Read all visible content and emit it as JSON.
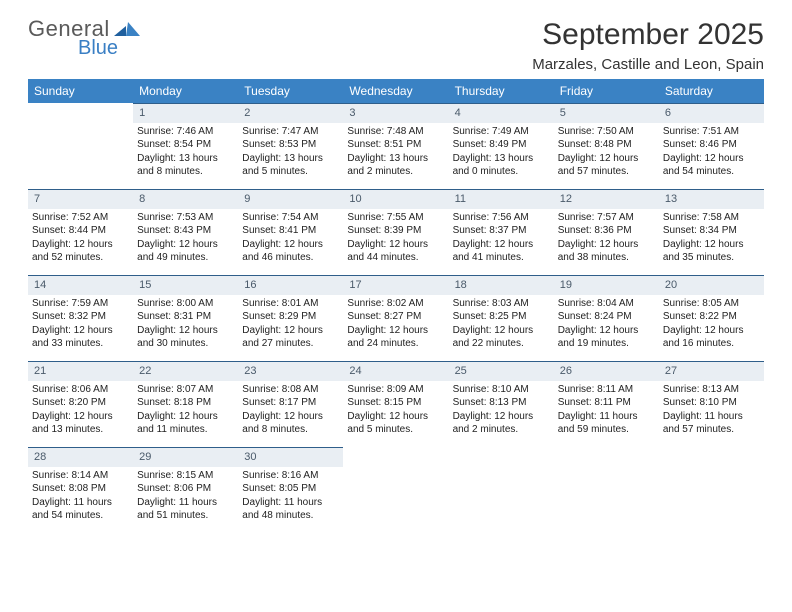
{
  "logo": {
    "line1": "General",
    "line2": "Blue"
  },
  "title": "September 2025",
  "location": "Marzales, Castille and Leon, Spain",
  "colors": {
    "header_bg": "#3a82c4",
    "header_text": "#ffffff",
    "daynum_bg": "#e9eef3",
    "daynum_border": "#2f5e8a",
    "logo_gray": "#5a5a5a",
    "logo_blue": "#3a7fc4",
    "text": "#333333"
  },
  "weekdays": [
    "Sunday",
    "Monday",
    "Tuesday",
    "Wednesday",
    "Thursday",
    "Friday",
    "Saturday"
  ],
  "weeks": [
    [
      {
        "empty": true
      },
      {
        "n": "1",
        "sr": "Sunrise: 7:46 AM",
        "ss": "Sunset: 8:54 PM",
        "d1": "Daylight: 13 hours",
        "d2": "and 8 minutes."
      },
      {
        "n": "2",
        "sr": "Sunrise: 7:47 AM",
        "ss": "Sunset: 8:53 PM",
        "d1": "Daylight: 13 hours",
        "d2": "and 5 minutes."
      },
      {
        "n": "3",
        "sr": "Sunrise: 7:48 AM",
        "ss": "Sunset: 8:51 PM",
        "d1": "Daylight: 13 hours",
        "d2": "and 2 minutes."
      },
      {
        "n": "4",
        "sr": "Sunrise: 7:49 AM",
        "ss": "Sunset: 8:49 PM",
        "d1": "Daylight: 13 hours",
        "d2": "and 0 minutes."
      },
      {
        "n": "5",
        "sr": "Sunrise: 7:50 AM",
        "ss": "Sunset: 8:48 PM",
        "d1": "Daylight: 12 hours",
        "d2": "and 57 minutes."
      },
      {
        "n": "6",
        "sr": "Sunrise: 7:51 AM",
        "ss": "Sunset: 8:46 PM",
        "d1": "Daylight: 12 hours",
        "d2": "and 54 minutes."
      }
    ],
    [
      {
        "n": "7",
        "sr": "Sunrise: 7:52 AM",
        "ss": "Sunset: 8:44 PM",
        "d1": "Daylight: 12 hours",
        "d2": "and 52 minutes."
      },
      {
        "n": "8",
        "sr": "Sunrise: 7:53 AM",
        "ss": "Sunset: 8:43 PM",
        "d1": "Daylight: 12 hours",
        "d2": "and 49 minutes."
      },
      {
        "n": "9",
        "sr": "Sunrise: 7:54 AM",
        "ss": "Sunset: 8:41 PM",
        "d1": "Daylight: 12 hours",
        "d2": "and 46 minutes."
      },
      {
        "n": "10",
        "sr": "Sunrise: 7:55 AM",
        "ss": "Sunset: 8:39 PM",
        "d1": "Daylight: 12 hours",
        "d2": "and 44 minutes."
      },
      {
        "n": "11",
        "sr": "Sunrise: 7:56 AM",
        "ss": "Sunset: 8:37 PM",
        "d1": "Daylight: 12 hours",
        "d2": "and 41 minutes."
      },
      {
        "n": "12",
        "sr": "Sunrise: 7:57 AM",
        "ss": "Sunset: 8:36 PM",
        "d1": "Daylight: 12 hours",
        "d2": "and 38 minutes."
      },
      {
        "n": "13",
        "sr": "Sunrise: 7:58 AM",
        "ss": "Sunset: 8:34 PM",
        "d1": "Daylight: 12 hours",
        "d2": "and 35 minutes."
      }
    ],
    [
      {
        "n": "14",
        "sr": "Sunrise: 7:59 AM",
        "ss": "Sunset: 8:32 PM",
        "d1": "Daylight: 12 hours",
        "d2": "and 33 minutes."
      },
      {
        "n": "15",
        "sr": "Sunrise: 8:00 AM",
        "ss": "Sunset: 8:31 PM",
        "d1": "Daylight: 12 hours",
        "d2": "and 30 minutes."
      },
      {
        "n": "16",
        "sr": "Sunrise: 8:01 AM",
        "ss": "Sunset: 8:29 PM",
        "d1": "Daylight: 12 hours",
        "d2": "and 27 minutes."
      },
      {
        "n": "17",
        "sr": "Sunrise: 8:02 AM",
        "ss": "Sunset: 8:27 PM",
        "d1": "Daylight: 12 hours",
        "d2": "and 24 minutes."
      },
      {
        "n": "18",
        "sr": "Sunrise: 8:03 AM",
        "ss": "Sunset: 8:25 PM",
        "d1": "Daylight: 12 hours",
        "d2": "and 22 minutes."
      },
      {
        "n": "19",
        "sr": "Sunrise: 8:04 AM",
        "ss": "Sunset: 8:24 PM",
        "d1": "Daylight: 12 hours",
        "d2": "and 19 minutes."
      },
      {
        "n": "20",
        "sr": "Sunrise: 8:05 AM",
        "ss": "Sunset: 8:22 PM",
        "d1": "Daylight: 12 hours",
        "d2": "and 16 minutes."
      }
    ],
    [
      {
        "n": "21",
        "sr": "Sunrise: 8:06 AM",
        "ss": "Sunset: 8:20 PM",
        "d1": "Daylight: 12 hours",
        "d2": "and 13 minutes."
      },
      {
        "n": "22",
        "sr": "Sunrise: 8:07 AM",
        "ss": "Sunset: 8:18 PM",
        "d1": "Daylight: 12 hours",
        "d2": "and 11 minutes."
      },
      {
        "n": "23",
        "sr": "Sunrise: 8:08 AM",
        "ss": "Sunset: 8:17 PM",
        "d1": "Daylight: 12 hours",
        "d2": "and 8 minutes."
      },
      {
        "n": "24",
        "sr": "Sunrise: 8:09 AM",
        "ss": "Sunset: 8:15 PM",
        "d1": "Daylight: 12 hours",
        "d2": "and 5 minutes."
      },
      {
        "n": "25",
        "sr": "Sunrise: 8:10 AM",
        "ss": "Sunset: 8:13 PM",
        "d1": "Daylight: 12 hours",
        "d2": "and 2 minutes."
      },
      {
        "n": "26",
        "sr": "Sunrise: 8:11 AM",
        "ss": "Sunset: 8:11 PM",
        "d1": "Daylight: 11 hours",
        "d2": "and 59 minutes."
      },
      {
        "n": "27",
        "sr": "Sunrise: 8:13 AM",
        "ss": "Sunset: 8:10 PM",
        "d1": "Daylight: 11 hours",
        "d2": "and 57 minutes."
      }
    ],
    [
      {
        "n": "28",
        "sr": "Sunrise: 8:14 AM",
        "ss": "Sunset: 8:08 PM",
        "d1": "Daylight: 11 hours",
        "d2": "and 54 minutes."
      },
      {
        "n": "29",
        "sr": "Sunrise: 8:15 AM",
        "ss": "Sunset: 8:06 PM",
        "d1": "Daylight: 11 hours",
        "d2": "and 51 minutes."
      },
      {
        "n": "30",
        "sr": "Sunrise: 8:16 AM",
        "ss": "Sunset: 8:05 PM",
        "d1": "Daylight: 11 hours",
        "d2": "and 48 minutes."
      },
      {
        "empty": true
      },
      {
        "empty": true
      },
      {
        "empty": true
      },
      {
        "empty": true
      }
    ]
  ]
}
